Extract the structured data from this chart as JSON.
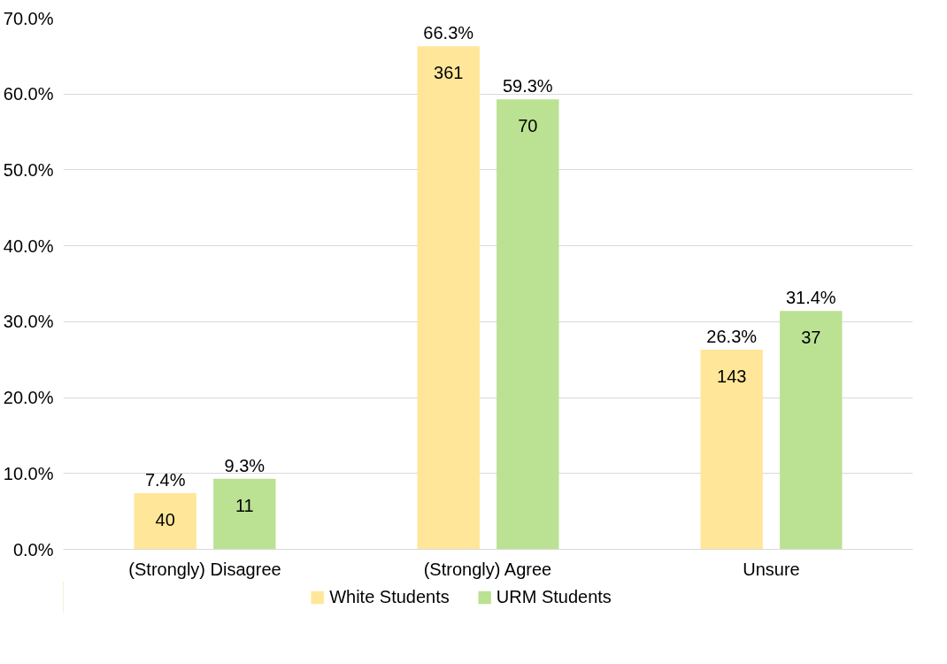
{
  "chart_data": {
    "type": "bar",
    "categories": [
      "(Strongly) Disagree",
      "(Strongly) Agree",
      "Unsure"
    ],
    "series": [
      {
        "name": "White Students",
        "color": "#ffe699",
        "values": [
          7.4,
          66.3,
          26.3
        ],
        "value_labels": [
          "7.4%",
          "66.3%",
          "26.3%"
        ]
      },
      {
        "name": "URM Students",
        "color": "#bbe193",
        "values": [
          9.3,
          59.3,
          31.4
        ],
        "value_labels": [
          "9.3%",
          "59.3%",
          "31.4%"
        ]
      }
    ],
    "annotations": [
      "40",
      "361",
      "143",
      "11",
      "70",
      "37"
    ],
    "ylim": [
      0,
      70
    ],
    "yticks": [
      {
        "value": 0,
        "label": "0.0%"
      },
      {
        "value": 10,
        "label": "10.0%"
      },
      {
        "value": 20,
        "label": "20.0%"
      },
      {
        "value": 30,
        "label": "30.0%"
      },
      {
        "value": 40,
        "label": "40.0%"
      },
      {
        "value": 50,
        "label": "50.0%"
      },
      {
        "value": 60,
        "label": "60.0%"
      },
      {
        "value": 70,
        "label": "70.0%"
      }
    ],
    "grid": "y",
    "legend": "bottom"
  }
}
